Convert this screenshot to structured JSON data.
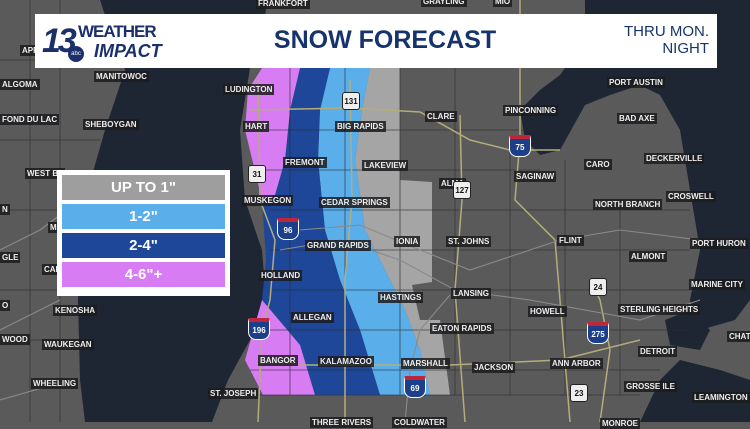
{
  "header": {
    "logo_text": "13 WEATHER IMPACT abc",
    "logo_number": "13",
    "logo_word1": "WEATHER",
    "logo_word2": "IMPACT",
    "logo_network": "abc",
    "title": "SNOW FORECAST",
    "subtitle": "THRU MON. NIGHT"
  },
  "legend": [
    {
      "label": "UP TO 1\"",
      "color": "#9e9e9e"
    },
    {
      "label": "1-2\"",
      "color": "#5aaeea"
    },
    {
      "label": "2-4\"",
      "color": "#1e4799"
    },
    {
      "label": "4-6\"+",
      "color": "#d77cf2"
    }
  ],
  "map": {
    "labels": [
      "FRANKFORT",
      "GRAYLING",
      "MIO",
      "APP",
      "ALGOMA",
      "MANITOWOC",
      "FOND DU LAC",
      "SHEBOYGAN",
      "LUDINGTON",
      "HART",
      "BIG RAPIDS",
      "CLARE",
      "PINCONNING",
      "PORT AUSTIN",
      "BAD AXE",
      "FREMONT",
      "LAKEVIEW",
      "CARO",
      "DECKERVILLE",
      "SAGINAW",
      "ALMA",
      "CROSWELL",
      "WEST BE",
      "NORTH BRANCH",
      "MUSKEGON",
      "CEDAR SPRINGS",
      "GRAND RAPIDS",
      "IONIA",
      "ST. JOHNS",
      "FLINT",
      "PORT HURON",
      "ALMONT",
      "GLE",
      "CAL",
      "HOLLAND",
      "LANSING",
      "MARINE CITY",
      "HASTINGS",
      "HOWELL",
      "STERLING HEIGHTS",
      "EATON RAPIDS",
      "KENOSHA",
      "ALLEGAN",
      "WAUKEGAN",
      "WOOD",
      "CHATH",
      "BANGOR",
      "KALAMAZOO",
      "MARSHALL",
      "JACKSON",
      "ANN ARBOR",
      "DETROIT",
      "WHEELING",
      "ST. JOSEPH",
      "GROSSE ILE",
      "LEAMINGTON",
      "THREE RIVERS",
      "COLDWATER",
      "MONROE",
      "MI",
      "N",
      "O"
    ],
    "shields": [
      {
        "type": "interstate",
        "num": "75"
      },
      {
        "type": "interstate",
        "num": "96"
      },
      {
        "type": "interstate",
        "num": "196"
      },
      {
        "type": "interstate",
        "num": "275"
      },
      {
        "type": "interstate",
        "num": "69"
      },
      {
        "type": "us",
        "num": "131"
      },
      {
        "type": "us",
        "num": "31"
      },
      {
        "type": "us",
        "num": "127"
      },
      {
        "type": "us",
        "num": "24"
      },
      {
        "type": "us",
        "num": "23"
      }
    ],
    "colors": {
      "land": "#5a5a5a",
      "water": "#1e2533",
      "road": "#b3ad7a"
    }
  }
}
